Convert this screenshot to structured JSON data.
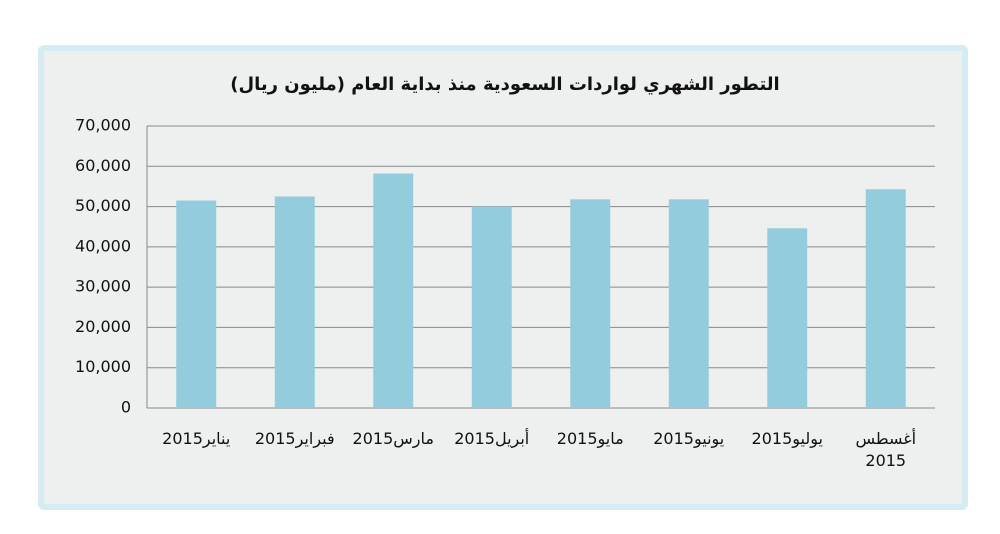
{
  "chart_data": {
    "type": "bar",
    "title": "التطور الشهري لواردات السعودية منذ بداية العام (مليون ريال)",
    "categories": [
      "يناير2015",
      "فبراير2015",
      "مارس2015",
      "أبريل2015",
      "مايو2015",
      "يونيو2015",
      "يوليو2015",
      "أغسطس 2015"
    ],
    "values": [
      51500,
      52500,
      58200,
      50000,
      51800,
      51800,
      44600,
      54300
    ],
    "color": "#93cddd",
    "ylim": [
      0,
      70000
    ],
    "yticks": [
      0,
      {
        "value": 10000,
        "label": "10,000"
      },
      {
        "value": 20000,
        "label": "20,000"
      },
      {
        "value": 30000,
        "label": "30,000"
      },
      {
        "value": 40000,
        "label": "40,000"
      },
      {
        "value": 50000,
        "label": "50,000"
      },
      {
        "value": 60000,
        "label": "60,000"
      },
      {
        "value": 70000,
        "label": "70,000"
      }
    ],
    "grid": true
  }
}
